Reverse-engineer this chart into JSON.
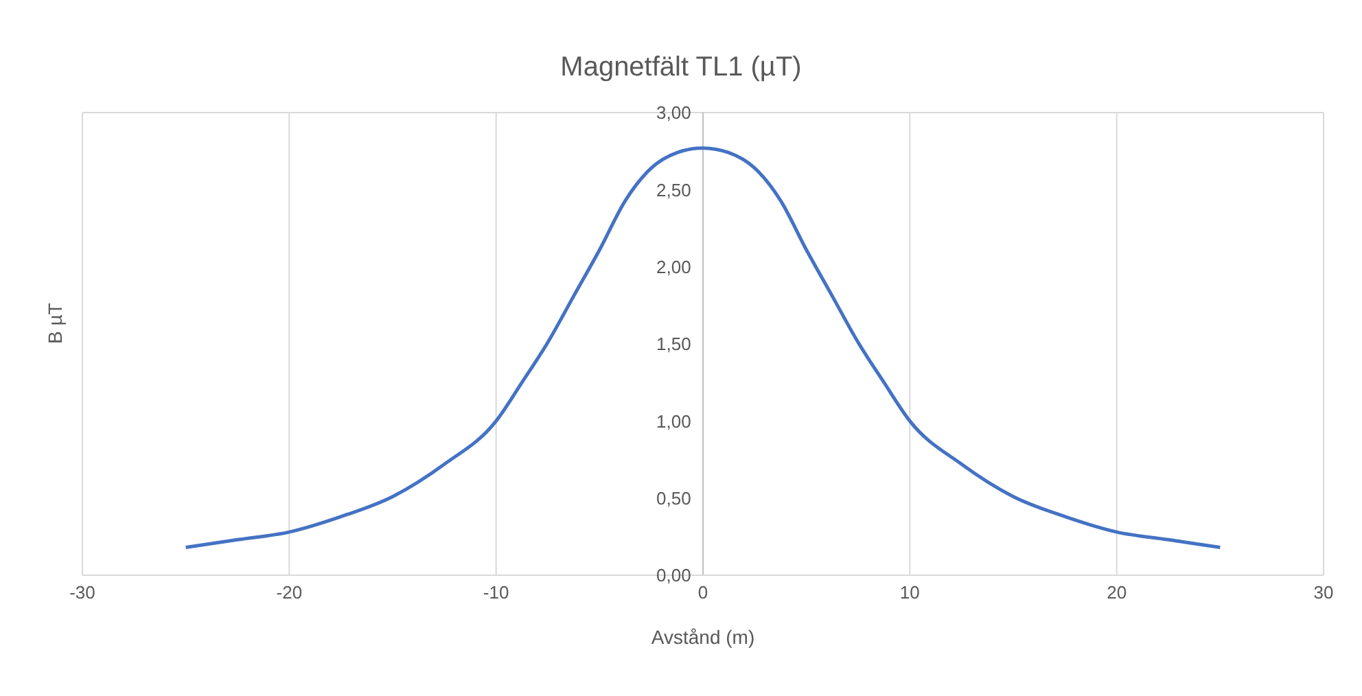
{
  "chart_data": {
    "type": "line",
    "title": "Magnetfält TL1 (µT)",
    "xlabel": "Avstånd (m)",
    "ylabel": "B µT",
    "x": [
      -25,
      -22.5,
      -20,
      -17.5,
      -15,
      -12.5,
      -10,
      -8.75,
      -7.5,
      -6.25,
      -5,
      -3.75,
      -2.5,
      -1.25,
      0,
      1.25,
      2.5,
      3.75,
      5,
      6.25,
      7.5,
      8.75,
      10,
      12.5,
      15,
      17.5,
      20,
      22.5,
      25
    ],
    "series": [
      {
        "color": "#4472c4",
        "values": [
          0.18,
          0.23,
          0.28,
          0.38,
          0.51,
          0.72,
          1.0,
          1.25,
          1.51,
          1.81,
          2.11,
          2.43,
          2.64,
          2.74,
          2.77,
          2.74,
          2.64,
          2.43,
          2.11,
          1.81,
          1.51,
          1.25,
          1.0,
          0.72,
          0.51,
          0.38,
          0.28,
          0.23,
          0.18
        ]
      }
    ],
    "xlim": [
      -30,
      30
    ],
    "xticks": [
      -30,
      -20,
      -10,
      0,
      10,
      20,
      30
    ],
    "ylim": [
      0,
      3
    ],
    "yticks": [
      {
        "value": 0,
        "label": "0,00"
      },
      {
        "value": 0.5,
        "label": "0,50"
      },
      {
        "value": 1,
        "label": "1,00"
      },
      {
        "value": 1.5,
        "label": "1,50"
      },
      {
        "value": 2,
        "label": "2,00"
      },
      {
        "value": 2.5,
        "label": "2,50"
      },
      {
        "value": 3,
        "label": "3,00"
      }
    ],
    "grid": true,
    "marker": "none",
    "line_style": "solid"
  }
}
